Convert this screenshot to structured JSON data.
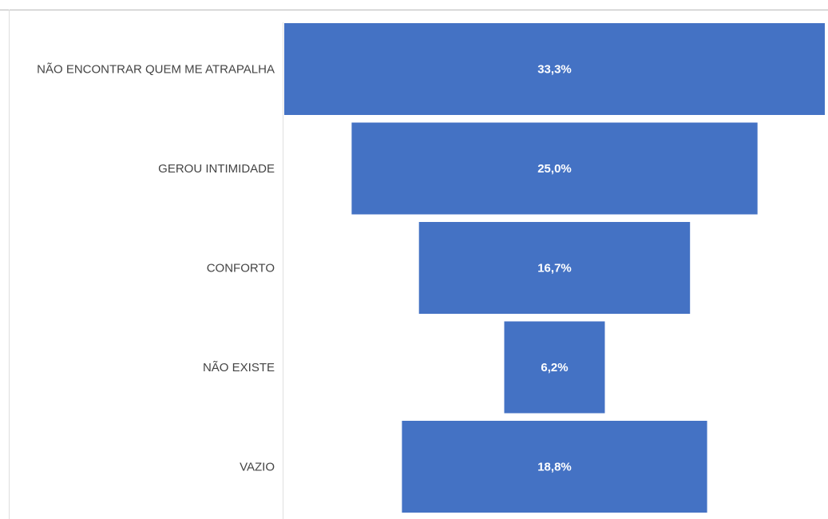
{
  "chart_data": {
    "type": "bar",
    "subtype": "funnel",
    "categories": [
      "NÃO ENCONTRAR QUEM ME ATRAPALHA",
      "GEROU INTIMIDADE",
      "CONFORTO",
      "NÃO EXISTE",
      "VAZIO"
    ],
    "values": [
      33.3,
      25.0,
      16.7,
      6.2,
      18.8
    ],
    "value_labels": [
      "33,3%",
      "25,0%",
      "16,7%",
      "6,2%",
      "18,8%"
    ],
    "unit": "%",
    "bar_color": "#4472c4",
    "label_color": "#444444",
    "value_label_color": "#ffffff",
    "grid": false,
    "legend": "none"
  }
}
